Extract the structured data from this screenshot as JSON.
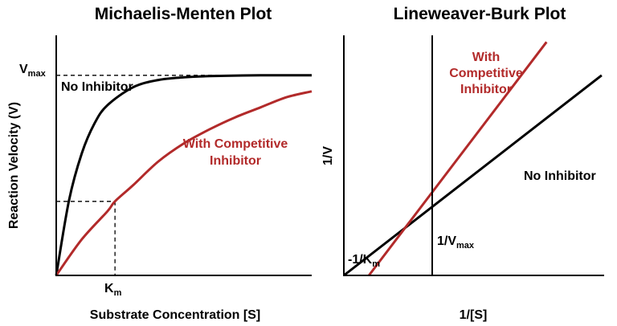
{
  "colors": {
    "no_inhibitor": "#000000",
    "competitive": "#b22a2a"
  },
  "chart_data": [
    {
      "type": "line",
      "title": "Michaelis-Menten Plot",
      "xlabel": "Substrate Concentration [S]",
      "ylabel": "Reaction Velocity (V)",
      "xlim": [
        0,
        10
      ],
      "ylim": [
        0,
        1.2
      ],
      "vmax": 1.0,
      "ticks": {
        "vmax_label": "V",
        "vmax_sub": "max",
        "km_label": "K",
        "km_sub": "m"
      },
      "km_marker": {
        "x": 2.3,
        "y": 0.37
      },
      "series": [
        {
          "name": "No Inhibitor",
          "x": [
            0,
            0.5,
            1,
            1.5,
            2,
            3,
            4,
            5,
            6,
            8,
            10
          ],
          "y": [
            0,
            0.375,
            0.61,
            0.76,
            0.85,
            0.94,
            0.977,
            0.99,
            0.996,
            1.0,
            1.0
          ]
        },
        {
          "name": "With Competitive Inhibitor",
          "x": [
            0,
            1,
            2,
            2.3,
            3,
            4,
            5,
            6,
            7,
            8,
            9,
            10
          ],
          "y": [
            0,
            0.18,
            0.32,
            0.37,
            0.45,
            0.57,
            0.66,
            0.73,
            0.79,
            0.84,
            0.89,
            0.92
          ]
        }
      ],
      "annotations": {
        "no_inhibitor": "No Inhibitor",
        "competitive_line1": "With Competitive",
        "competitive_line2": "Inhibitor"
      }
    },
    {
      "type": "line",
      "title": "Lineweaver-Burk Plot",
      "xlabel": "1/[S]",
      "ylabel": "1/V",
      "xlim": [
        -1.2,
        4.0
      ],
      "ylim": [
        -0.8,
        4.6
      ],
      "intersection": {
        "x": 0,
        "y": 0.5
      },
      "series": [
        {
          "name": "No Inhibitor",
          "x": [
            -1.2,
            3.95
          ],
          "y": [
            -0.8,
            3.7
          ]
        },
        {
          "name": "With Competitive Inhibitor",
          "x": [
            -0.7,
            2.85
          ],
          "y": [
            -0.8,
            4.45
          ]
        }
      ],
      "annotations": {
        "neg_inv_km": "-1/K",
        "neg_inv_km_sub": "m",
        "inv_vmax": "1/V",
        "inv_vmax_sub": "max",
        "no_inhibitor": "No Inhibitor",
        "competitive_line1": "With",
        "competitive_line2": "Competitive",
        "competitive_line3": "Inhibitor"
      }
    }
  ]
}
